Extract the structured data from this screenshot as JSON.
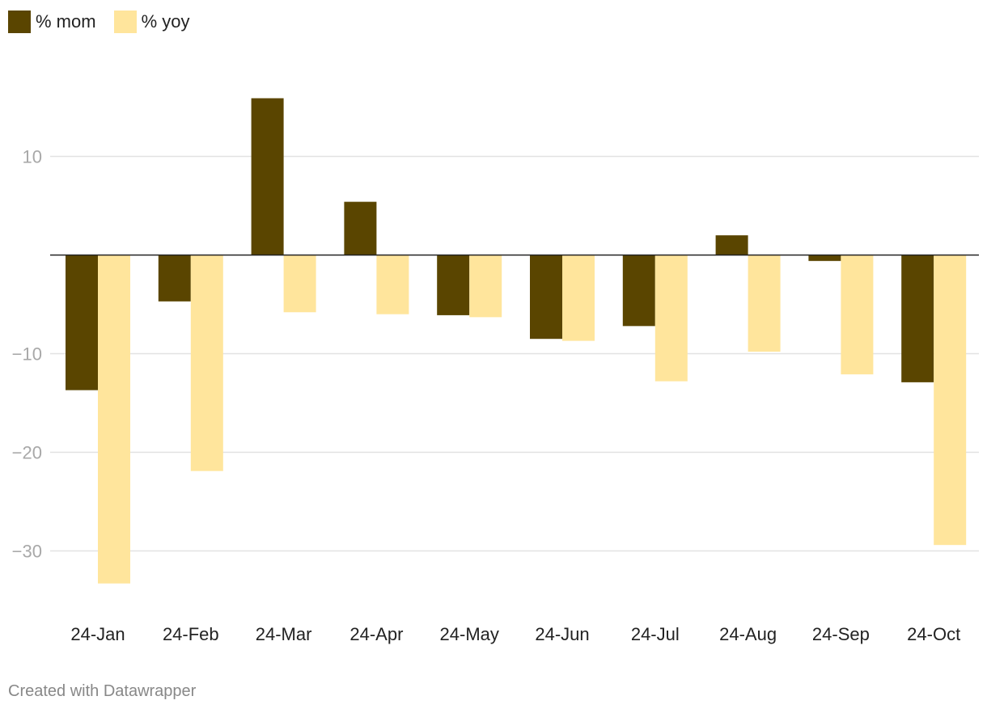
{
  "chart_data": {
    "type": "bar",
    "categories": [
      "24-Jan",
      "24-Feb",
      "24-Mar",
      "24-Apr",
      "24-May",
      "24-Jun",
      "24-Jul",
      "24-Aug",
      "24-Sep",
      "24-Oct"
    ],
    "series": [
      {
        "name": "% mom",
        "color": "#5a4500",
        "values": [
          -13.7,
          -4.7,
          15.9,
          5.4,
          -6.1,
          -8.5,
          -7.2,
          2.0,
          -0.6,
          -12.9
        ]
      },
      {
        "name": "% yoy",
        "color": "#ffe59c",
        "values": [
          -33.3,
          -21.9,
          -5.8,
          -6.0,
          -6.3,
          -8.7,
          -12.8,
          -9.8,
          -12.1,
          -29.4
        ]
      }
    ],
    "yticks": [
      10,
      0,
      -10,
      -20,
      -30
    ],
    "ytick_labels": [
      "10",
      "",
      "−10",
      "−20",
      "−30"
    ],
    "ylim": [
      -36,
      20
    ],
    "grid": true,
    "legend_position": "top-left"
  },
  "footer": {
    "credit": "Created with Datawrapper"
  }
}
